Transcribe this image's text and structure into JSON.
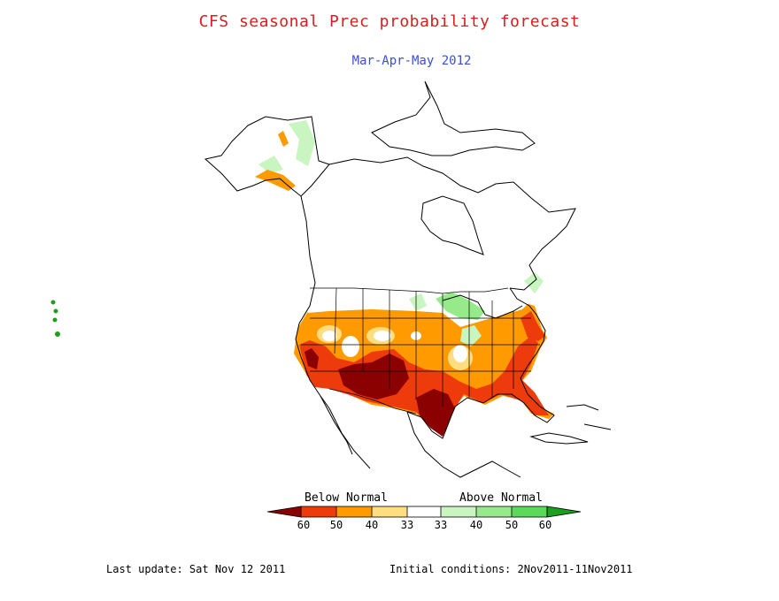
{
  "title": "CFS seasonal Prec probability forecast",
  "subtitle": "Mar-Apr-May 2012",
  "legend": {
    "below_label": "Below Normal",
    "above_label": "Above Normal",
    "ticks": [
      "60",
      "50",
      "40",
      "33",
      "33",
      "40",
      "50",
      "60"
    ],
    "colors": {
      "below_60_plus": "#8b0000",
      "below_50": "#ee3b0b",
      "below_40": "#ff9a00",
      "below_33": "#ffdd80",
      "normal": "#ffffff",
      "above_33": "#c8f5c0",
      "above_40": "#96ea8a",
      "above_50": "#5cd85a",
      "above_60_plus": "#1aa01a"
    }
  },
  "footer": {
    "last_update": "Last update: Sat Nov 12 2011",
    "initial_conditions": "Initial conditions: 2Nov2011-11Nov2011"
  }
}
